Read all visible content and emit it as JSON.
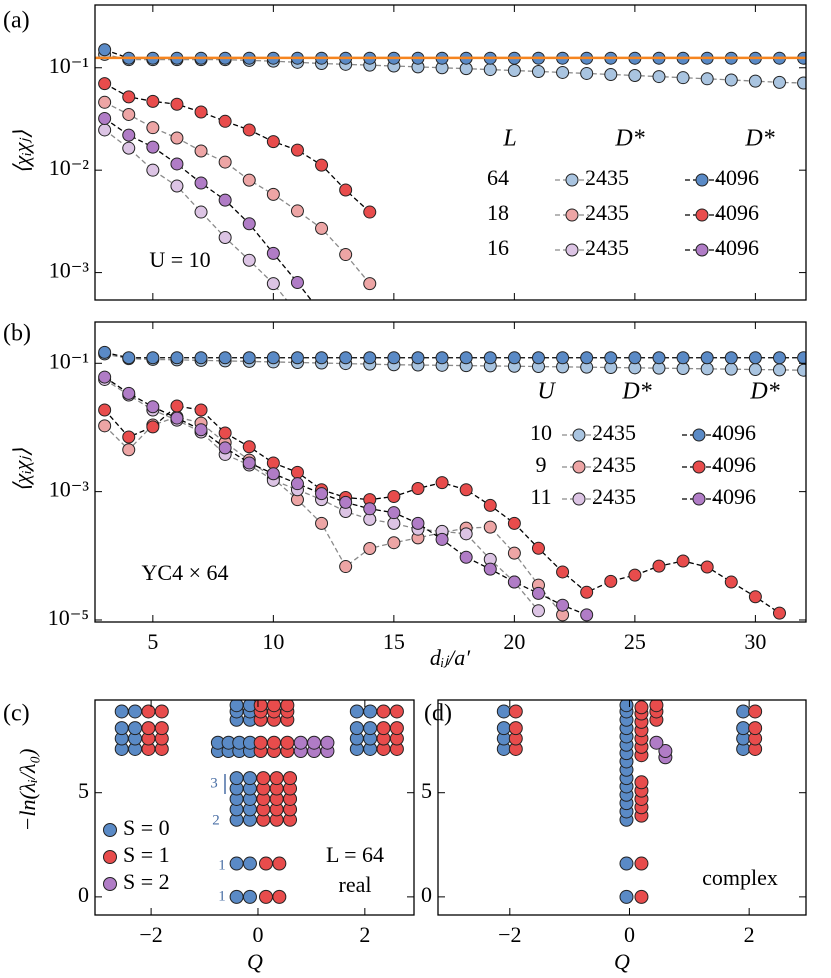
{
  "chart_data": [
    {
      "type": "line",
      "panel_label": "(a)",
      "y_label": "⟨χᵢχⱼ⟩",
      "log_y": true,
      "xlim": [
        2.6,
        32.1
      ],
      "ylim": [
        0.00054,
        0.41
      ],
      "yticks": [
        {
          "value": 0.1,
          "label": "10⁻¹"
        },
        {
          "value": 0.01,
          "label": "10⁻²"
        },
        {
          "value": 0.001,
          "label": "10⁻³"
        }
      ],
      "reference_line": {
        "value": 0.125,
        "color": "#f5841f"
      },
      "texts": [
        "U = 10"
      ],
      "legend_headers": [
        "L",
        "D*",
        "D*"
      ],
      "legend_rows": [
        "64",
        "18",
        "16"
      ],
      "series": [
        {
          "name": "2435",
          "color": "#a9c4e0",
          "line_color": "#8a8a8a",
          "x": [
            3,
            4,
            5,
            6,
            7,
            8,
            9,
            10,
            11,
            12,
            13,
            14,
            15,
            16,
            17,
            18,
            19,
            20,
            21,
            22,
            23,
            24,
            25,
            26,
            27,
            28,
            29,
            30,
            31,
            32
          ],
          "values": [
            0.135,
            0.12,
            0.12,
            0.12,
            0.12,
            0.12,
            0.118,
            0.116,
            0.113,
            0.11,
            0.108,
            0.106,
            0.104,
            0.102,
            0.1,
            0.098,
            0.096,
            0.094,
            0.092,
            0.09,
            0.088,
            0.086,
            0.084,
            0.082,
            0.08,
            0.078,
            0.076,
            0.074,
            0.072,
            0.071
          ]
        },
        {
          "name": "4096",
          "color": "#5a8ac6",
          "line_color": "#000000",
          "x": [
            3,
            4,
            5,
            6,
            7,
            8,
            9,
            10,
            11,
            12,
            13,
            14,
            15,
            16,
            17,
            18,
            19,
            20,
            21,
            22,
            23,
            24,
            25,
            26,
            27,
            28,
            29,
            30,
            31,
            32
          ],
          "values": [
            0.15,
            0.124,
            0.124,
            0.124,
            0.124,
            0.124,
            0.124,
            0.124,
            0.124,
            0.124,
            0.124,
            0.124,
            0.124,
            0.124,
            0.124,
            0.124,
            0.124,
            0.124,
            0.124,
            0.124,
            0.124,
            0.124,
            0.124,
            0.124,
            0.124,
            0.124,
            0.124,
            0.124,
            0.124,
            0.124
          ]
        },
        {
          "name": "2435",
          "color": "#eda5a5",
          "line_color": "#8a8a8a",
          "x": [
            3,
            4,
            5,
            6,
            7,
            8,
            9,
            10,
            11,
            12,
            13,
            14
          ],
          "values": [
            0.046,
            0.035,
            0.026,
            0.0206,
            0.0154,
            0.012,
            0.008,
            0.0058,
            0.004,
            0.0027,
            0.0015,
            0.00078
          ]
        },
        {
          "name": "4096",
          "color": "#e84c4c",
          "line_color": "#000000",
          "x": [
            3,
            4,
            5,
            6,
            7,
            8,
            9,
            10,
            11,
            12,
            13,
            14
          ],
          "values": [
            0.07,
            0.052,
            0.047,
            0.044,
            0.037,
            0.03,
            0.0247,
            0.019,
            0.0157,
            0.0112,
            0.0064,
            0.0039
          ]
        },
        {
          "name": "2435",
          "color": "#dcc4e4",
          "line_color": "#8a8a8a",
          "x": [
            3,
            4,
            5,
            6,
            7,
            8,
            9,
            10,
            11
          ],
          "values": [
            0.0247,
            0.0164,
            0.01,
            0.007,
            0.0039,
            0.0022,
            0.00132,
            0.00078,
            0.0004
          ]
        },
        {
          "name": "4096",
          "color": "#b07cc6",
          "line_color": "#000000",
          "x": [
            3,
            4,
            5,
            6,
            7,
            8,
            9,
            10,
            11,
            12
          ],
          "values": [
            0.032,
            0.022,
            0.0168,
            0.0115,
            0.0075,
            0.0051,
            0.003,
            0.00154,
            0.0008,
            0.0004
          ]
        }
      ]
    },
    {
      "type": "line",
      "panel_label": "(b)",
      "y_label": "⟨χᵢχⱼ⟩",
      "x_label": "dᵢⱼ/a′",
      "log_y": true,
      "xlim": [
        2.6,
        32.1
      ],
      "ylim": [
        9.3e-06,
        0.44
      ],
      "xticks": [
        5,
        10,
        15,
        20,
        25,
        30
      ],
      "yticks": [
        {
          "value": 0.1,
          "label": "10⁻¹"
        },
        {
          "value": 0.001,
          "label": "10⁻³"
        },
        {
          "value": 1e-05,
          "label": "10⁻⁵"
        }
      ],
      "texts": [
        "YC4 × 64"
      ],
      "legend_headers": [
        "U",
        "D*",
        "D*"
      ],
      "legend_rows": [
        "10",
        "9",
        "11"
      ],
      "series": [
        {
          "name": "2435",
          "color": "#a9c4e0",
          "line_color": "#8a8a8a",
          "x": [
            3,
            4,
            5,
            6,
            7,
            8,
            9,
            10,
            11,
            12,
            13,
            14,
            15,
            16,
            17,
            18,
            19,
            20,
            21,
            22,
            23,
            24,
            25,
            26,
            27,
            28,
            29,
            30,
            31,
            32
          ],
          "values": [
            0.14,
            0.118,
            0.115,
            0.113,
            0.111,
            0.109,
            0.107,
            0.105,
            0.103,
            0.101,
            0.099,
            0.097,
            0.095,
            0.094,
            0.093,
            0.092,
            0.091,
            0.09,
            0.089,
            0.088,
            0.087,
            0.086,
            0.085,
            0.084,
            0.083,
            0.082,
            0.081,
            0.08,
            0.079,
            0.078
          ]
        },
        {
          "name": "4096",
          "color": "#5a8ac6",
          "line_color": "#000000",
          "x": [
            3,
            4,
            5,
            6,
            7,
            8,
            9,
            10,
            11,
            12,
            13,
            14,
            15,
            16,
            17,
            18,
            19,
            20,
            21,
            22,
            23,
            24,
            25,
            26,
            27,
            28,
            29,
            30,
            31,
            32
          ],
          "values": [
            0.148,
            0.122,
            0.122,
            0.122,
            0.122,
            0.122,
            0.122,
            0.122,
            0.122,
            0.122,
            0.122,
            0.122,
            0.122,
            0.122,
            0.122,
            0.122,
            0.122,
            0.122,
            0.122,
            0.122,
            0.122,
            0.122,
            0.122,
            0.122,
            0.122,
            0.122,
            0.122,
            0.122,
            0.122,
            0.122
          ]
        },
        {
          "name": "2435",
          "color": "#eda5a5",
          "line_color": "#8a8a8a",
          "x": [
            3,
            4,
            5,
            6,
            7,
            8,
            9,
            10,
            11,
            12,
            13,
            14,
            15,
            16,
            17,
            18,
            19,
            20,
            21,
            22
          ],
          "values": [
            0.0106,
            0.0045,
            0.0109,
            0.0146,
            0.0117,
            0.0058,
            0.0031,
            0.0016,
            0.00075,
            0.00032,
            6.8e-05,
            0.00013,
            0.00016,
            0.00019,
            0.00023,
            0.00027,
            0.00028,
            0.00011,
            3.5e-05,
            1.2e-05
          ]
        },
        {
          "name": "4096",
          "color": "#e84c4c",
          "line_color": "#000000",
          "x": [
            3,
            4,
            5,
            6,
            7,
            8,
            9,
            10,
            11,
            12,
            13,
            14,
            15,
            16,
            17,
            18,
            19,
            20,
            21,
            22,
            23,
            24,
            25,
            26,
            27,
            28,
            29,
            30,
            31
          ],
          "values": [
            0.0187,
            0.0071,
            0.0102,
            0.0216,
            0.0187,
            0.0082,
            0.005,
            0.0028,
            0.002,
            0.00107,
            0.00081,
            0.00075,
            0.00084,
            0.00112,
            0.00138,
            0.00107,
            0.00061,
            0.00032,
            0.000131,
            5.6e-05,
            2.7e-05,
            4e-05,
            5e-05,
            6.9e-05,
            8.3e-05,
            6.7e-05,
            3.9e-05,
            2.3e-05,
            1.28e-05
          ]
        },
        {
          "name": "2435",
          "color": "#dcc4e4",
          "line_color": "#8a8a8a",
          "x": [
            3,
            4,
            5,
            6,
            7,
            8,
            9,
            10,
            11,
            12,
            13,
            14,
            15,
            16,
            17,
            18,
            19,
            20,
            21
          ],
          "values": [
            0.056,
            0.032,
            0.0187,
            0.013,
            0.0085,
            0.0038,
            0.0026,
            0.0015,
            0.00107,
            0.00075,
            0.00049,
            0.00037,
            0.00032,
            0.00026,
            0.00024,
            0.00022,
            8.8e-05,
            3.9e-05,
            1.39e-05
          ]
        },
        {
          "name": "4096",
          "color": "#b07cc6",
          "line_color": "#000000",
          "x": [
            3,
            4,
            5,
            6,
            7,
            8,
            9,
            10,
            11,
            12,
            13,
            14,
            15,
            16,
            17,
            18,
            19,
            20,
            21,
            22,
            23
          ],
          "values": [
            0.061,
            0.034,
            0.021,
            0.014,
            0.0092,
            0.0048,
            0.0028,
            0.0019,
            0.00133,
            0.00093,
            0.00068,
            0.00054,
            0.00047,
            0.00032,
            0.00018,
            9.5e-05,
            6.2e-05,
            3.9e-05,
            2.6e-05,
            1.7e-05,
            1.2e-05
          ]
        }
      ]
    },
    {
      "type": "scatter",
      "panel_label": "(c)",
      "y_label": "−ln(λᵢ/λ₀)",
      "x_label": "Q",
      "legend": true,
      "xlim": [
        -3.05,
        2.92
      ],
      "ylim": [
        -0.87,
        9.45
      ],
      "xticks": [
        {
          "value": -2,
          "label": "−2"
        },
        0,
        2
      ],
      "yticks": [
        0,
        5
      ],
      "texts": [
        "L = 64",
        "real"
      ],
      "annotations": [
        "3",
        "2",
        "1",
        "1"
      ],
      "series": [
        {
          "name": "S = 0",
          "color": "#5a8ac6",
          "x": [
            -0.4,
            -0.15,
            -0.4,
            -0.15,
            -0.4,
            -0.15,
            -0.4,
            -0.15,
            -0.4,
            -0.15,
            -0.4,
            -0.15,
            -0.4,
            -0.15,
            -0.75,
            -0.55,
            -0.35,
            -0.15,
            -0.75,
            -0.55,
            -0.35,
            -0.15,
            -0.4,
            -0.15,
            -0.4,
            -0.15,
            -0.4,
            -0.15,
            -2.55,
            -2.3,
            -2.55,
            -2.3,
            -2.55,
            -2.3,
            -2.55,
            -2.3,
            1.85,
            2.1,
            1.85,
            2.1,
            1.85,
            2.1,
            1.85,
            2.1
          ],
          "y": [
            0,
            0,
            1.6,
            1.6,
            3.7,
            3.7,
            4.2,
            4.2,
            4.7,
            4.7,
            5.2,
            5.2,
            5.7,
            5.7,
            7.0,
            7.0,
            7.0,
            7.0,
            7.4,
            7.4,
            7.4,
            7.4,
            8.5,
            8.5,
            8.9,
            8.9,
            9.2,
            9.2,
            7.1,
            7.1,
            7.6,
            7.6,
            8.1,
            8.1,
            8.9,
            8.9,
            7.1,
            7.1,
            7.6,
            7.6,
            8.1,
            8.1,
            8.9,
            8.9
          ]
        },
        {
          "name": "S = 1",
          "color": "#e84c4c",
          "x": [
            0.15,
            0.4,
            0.15,
            0.4,
            0.1,
            0.35,
            0.6,
            0.1,
            0.35,
            0.6,
            0.1,
            0.35,
            0.6,
            0.1,
            0.35,
            0.6,
            0.1,
            0.35,
            0.6,
            0.05,
            0.3,
            0.55,
            0.05,
            0.3,
            0.55,
            0.05,
            0.3,
            0.55,
            0.05,
            0.3,
            0.55,
            0.05,
            0.3,
            0.55,
            -2.05,
            -1.8,
            -2.05,
            -1.8,
            -2.05,
            -1.8,
            -2.05,
            -1.8,
            2.35,
            2.6,
            2.35,
            2.6,
            2.35,
            2.6,
            2.35,
            2.6
          ],
          "y": [
            0,
            0,
            1.6,
            1.6,
            3.7,
            3.7,
            3.7,
            4.2,
            4.2,
            4.2,
            4.7,
            4.7,
            4.7,
            5.2,
            5.2,
            5.2,
            5.7,
            5.7,
            5.7,
            7.0,
            7.0,
            7.0,
            7.4,
            7.4,
            7.4,
            8.5,
            8.5,
            8.5,
            8.9,
            8.9,
            8.9,
            9.2,
            9.2,
            9.2,
            7.1,
            7.1,
            7.6,
            7.6,
            8.1,
            8.1,
            8.9,
            8.9,
            7.1,
            7.1,
            7.6,
            7.6,
            8.1,
            8.1,
            8.9,
            8.9
          ]
        },
        {
          "name": "S = 2",
          "color": "#b07cc6",
          "x": [
            0.8,
            1.05,
            1.3,
            0.8,
            1.05,
            1.3
          ],
          "y": [
            7.0,
            7.0,
            7.0,
            7.4,
            7.4,
            7.4
          ]
        }
      ]
    },
    {
      "type": "scatter",
      "panel_label": "(d)",
      "x_label": "Q",
      "legend": false,
      "xlim": [
        -3.2,
        2.95
      ],
      "ylim": [
        -0.87,
        9.45
      ],
      "xticks": [
        {
          "value": -2,
          "label": "−2"
        },
        0,
        2
      ],
      "yticks": [
        0,
        5
      ],
      "texts": [
        "complex"
      ],
      "series": [
        {
          "color": "#5a8ac6",
          "x": [
            -0.05,
            -0.05,
            -0.05,
            -0.05,
            -0.05,
            -0.05,
            -0.05,
            -0.05,
            -0.05,
            -0.05,
            -0.05,
            -0.05,
            -0.05,
            -0.05,
            -0.05,
            -0.05,
            -0.05,
            -2.1,
            -2.1,
            -2.1,
            -2.1,
            1.9,
            1.9,
            1.9,
            1.9
          ],
          "y": [
            0,
            1.6,
            3.7,
            4.1,
            4.5,
            4.9,
            5.3,
            5.7,
            6.1,
            6.5,
            6.9,
            7.3,
            7.7,
            8.1,
            8.5,
            8.9,
            9.2,
            7.1,
            7.6,
            8.1,
            8.9,
            7.1,
            7.6,
            8.1,
            8.9
          ]
        },
        {
          "color": "#e84c4c",
          "x": [
            0.2,
            0.2,
            0.2,
            0.2,
            0.2,
            0.2,
            0.2,
            0.2,
            0.2,
            0.2,
            0.2,
            0.2,
            0.2,
            0.2,
            0.45,
            0.45,
            0.45,
            -1.9,
            -1.9,
            -1.9,
            -1.9,
            2.1,
            2.1,
            2.1,
            2.1
          ],
          "y": [
            0,
            1.6,
            3.9,
            4.3,
            4.7,
            5.1,
            5.5,
            6.8,
            7.2,
            7.6,
            8.0,
            8.4,
            8.8,
            9.1,
            8.5,
            8.9,
            9.2,
            7.1,
            7.6,
            8.1,
            8.9,
            7.1,
            7.6,
            8.1,
            8.9
          ]
        },
        {
          "color": "#b07cc6",
          "x": [
            0.6,
            0.6,
            0.45
          ],
          "y": [
            6.7,
            7.0,
            7.4
          ]
        }
      ]
    }
  ]
}
